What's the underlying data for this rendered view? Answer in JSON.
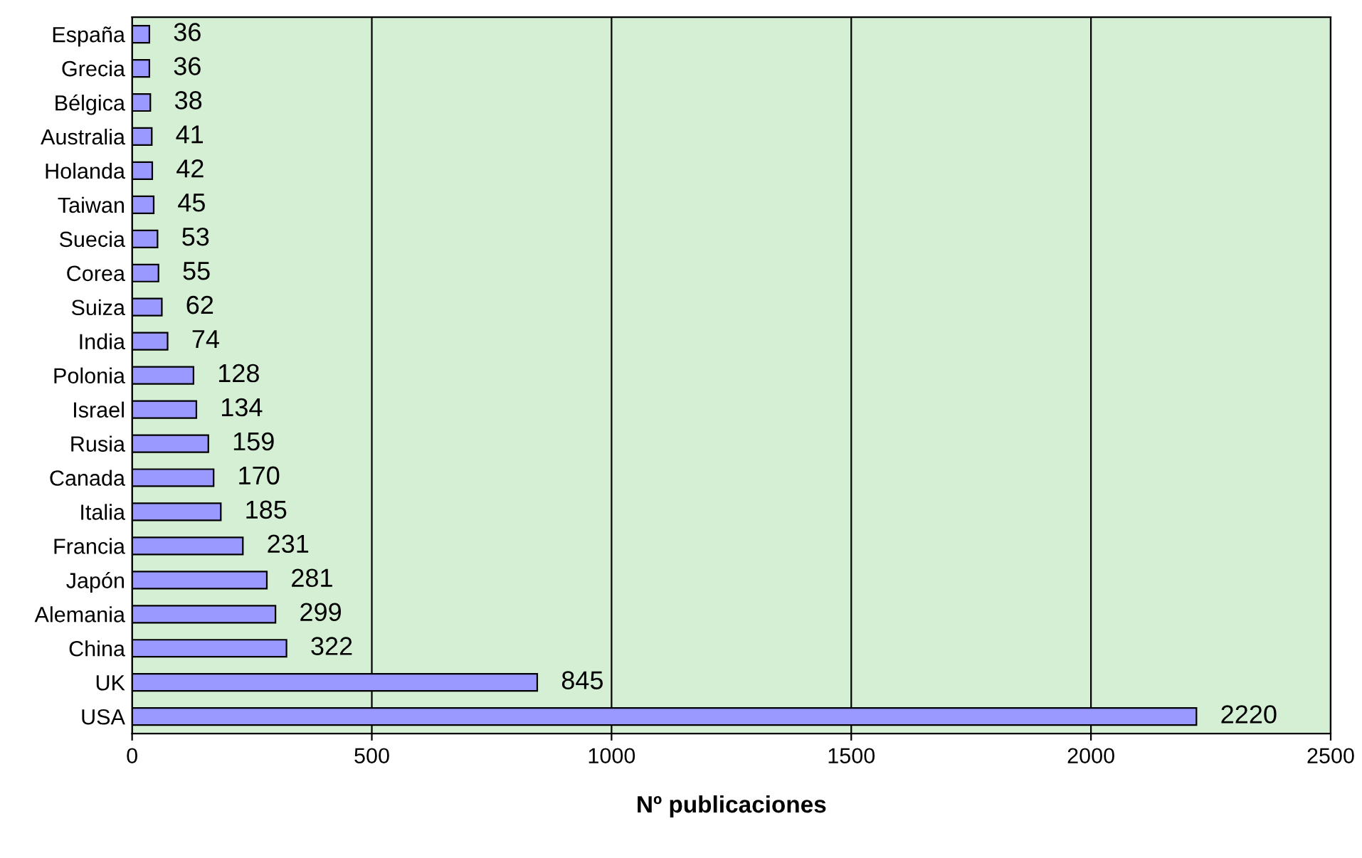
{
  "chart_data": {
    "type": "bar",
    "orientation": "horizontal",
    "xlabel": "Nº publicaciones",
    "categories": [
      "España",
      "Grecia",
      "Bélgica",
      "Australia",
      "Holanda",
      "Taiwan",
      "Suecia",
      "Corea",
      "Suiza",
      "India",
      "Polonia",
      "Israel",
      "Rusia",
      "Canada",
      "Italia",
      "Francia",
      "Japón",
      "Alemania",
      "China",
      "UK",
      "USA"
    ],
    "values": [
      36,
      36,
      38,
      41,
      42,
      45,
      53,
      55,
      62,
      74,
      128,
      134,
      159,
      170,
      185,
      231,
      281,
      299,
      322,
      845,
      2220
    ],
    "color": "#9999ff",
    "xlim": [
      0,
      2500
    ],
    "xticks": [
      0,
      500,
      1000,
      1500,
      2000,
      2500
    ],
    "grid": "x",
    "data_labels": true
  }
}
